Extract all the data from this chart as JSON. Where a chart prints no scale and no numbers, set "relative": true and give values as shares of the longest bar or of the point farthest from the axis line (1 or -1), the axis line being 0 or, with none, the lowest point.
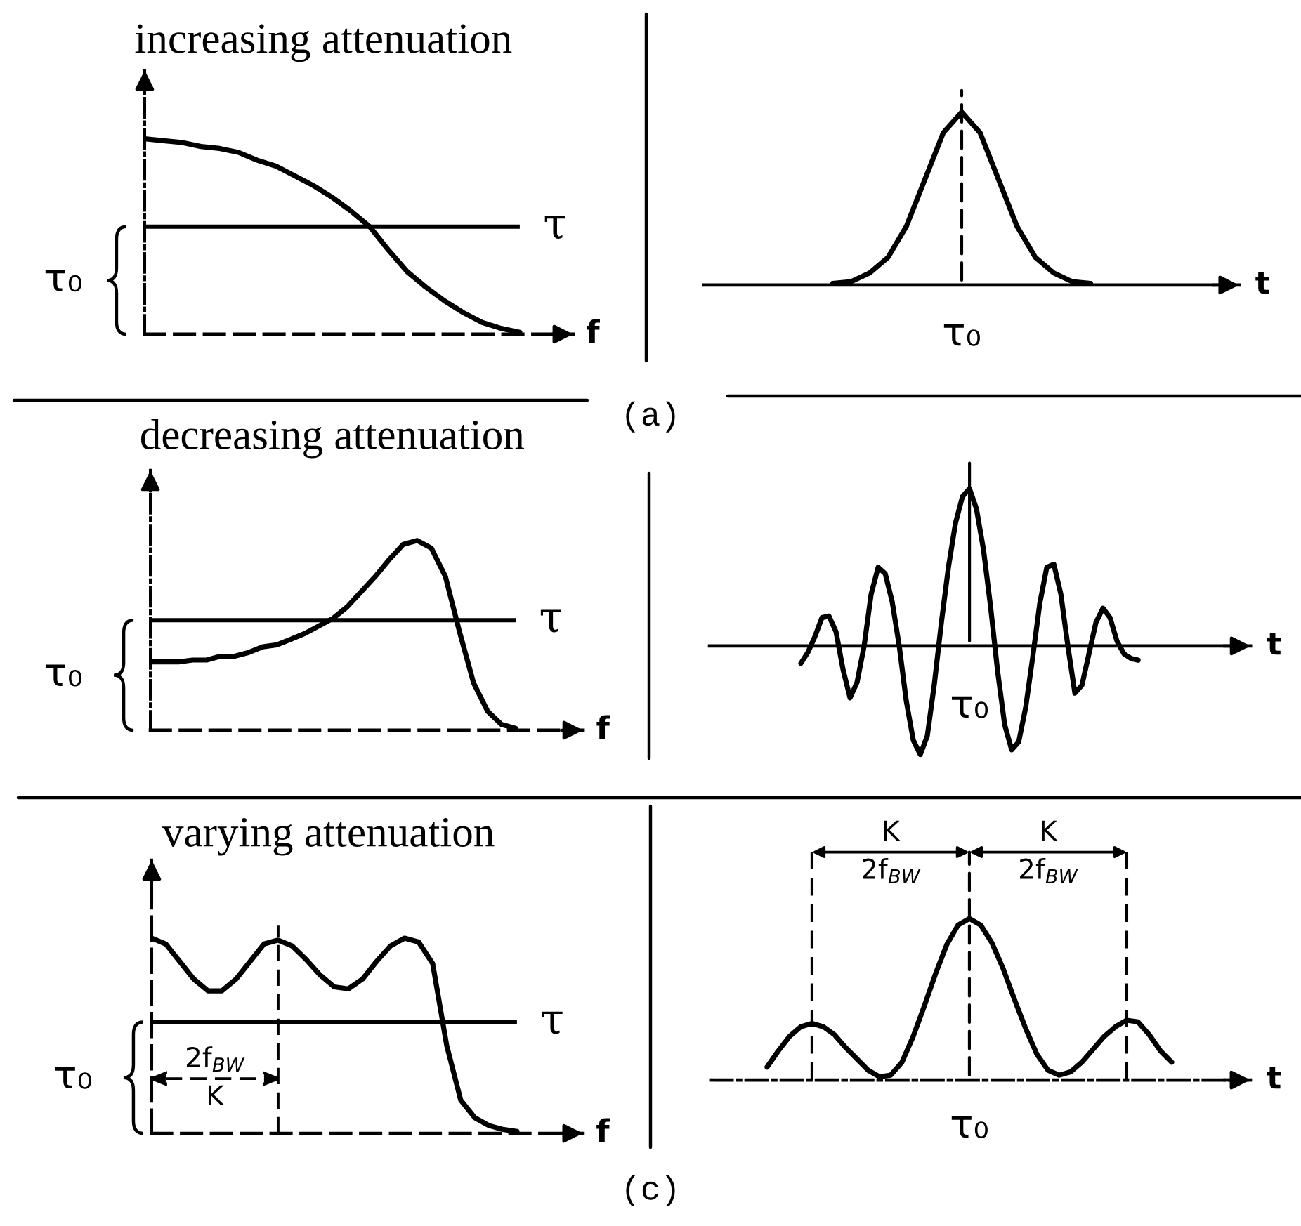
{
  "chart_data": [
    {
      "type": "line",
      "title": "increasing attenuation",
      "xlabel": "f",
      "relative": true,
      "color": "#000000",
      "categories": [
        null,
        null,
        null,
        null,
        null,
        null,
        null,
        null,
        null,
        null,
        null,
        null,
        null,
        null,
        null,
        null,
        null,
        null,
        null,
        null,
        null
      ],
      "values": [
        1,
        0.99,
        0.98,
        0.96,
        0.95,
        0.93,
        0.89,
        0.86,
        0.81,
        0.76,
        0.7,
        0.63,
        0.55,
        0.43,
        0.32,
        0.24,
        0.17,
        0.11,
        0.06,
        0.03,
        0.01
      ],
      "ref_lines": [
        {
          "axis": "y",
          "value": 0.55,
          "label": "τ",
          "color": "#000000",
          "line_style": "solid"
        }
      ],
      "annotations": [
        "τ₀",
        "(a)"
      ]
    },
    {
      "type": "line",
      "xlabel": "t",
      "relative": true,
      "color": "#000000",
      "categories": [
        null,
        null,
        null,
        null,
        null,
        null,
        null,
        null,
        null,
        null,
        null,
        null,
        null,
        null,
        null
      ],
      "values": [
        0.01,
        0.02,
        0.07,
        0.16,
        0.34,
        0.61,
        0.88,
        1,
        0.88,
        0.61,
        0.34,
        0.16,
        0.07,
        0.02,
        0.01
      ],
      "annotations": [
        "τ₀"
      ]
    },
    {
      "type": "line",
      "title": "decreasing attenuation",
      "xlabel": "f",
      "relative": true,
      "color": "#000000",
      "categories": [
        null,
        null,
        null,
        null,
        null,
        null,
        null,
        null,
        null,
        null,
        null,
        null,
        null,
        null,
        null,
        null,
        null,
        null,
        null,
        null,
        null,
        null,
        null,
        null,
        null,
        null,
        null
      ],
      "values": [
        0.36,
        0.36,
        0.36,
        0.37,
        0.37,
        0.39,
        0.39,
        0.41,
        0.44,
        0.45,
        0.48,
        0.51,
        0.55,
        0.59,
        0.65,
        0.73,
        0.81,
        0.9,
        0.98,
        1,
        0.96,
        0.81,
        0.52,
        0.25,
        0.1,
        0.03,
        0.01
      ],
      "ref_lines": [
        {
          "axis": "y",
          "value": 0.58,
          "label": "τ",
          "color": "#000000",
          "line_style": "solid"
        }
      ],
      "annotations": [
        "τ₀"
      ]
    },
    {
      "type": "line",
      "xlabel": "t",
      "relative": true,
      "color": "#000000",
      "categories": [
        null,
        null,
        null,
        null,
        null,
        null,
        null,
        null,
        null,
        null,
        null,
        null,
        null,
        null,
        null,
        null,
        null,
        null,
        null,
        null,
        null,
        null,
        null,
        null,
        null,
        null,
        null,
        null,
        null,
        null,
        null,
        null,
        null,
        null,
        null,
        null,
        null,
        null,
        null,
        null,
        null,
        null,
        null,
        null,
        null,
        null,
        null,
        null,
        null
      ],
      "values": [
        -0.11,
        -0.04,
        0.06,
        0.18,
        0.19,
        0.09,
        -0.15,
        -0.33,
        -0.23,
        0,
        0.33,
        0.5,
        0.46,
        0.28,
        0,
        -0.35,
        -0.6,
        -0.69,
        -0.57,
        -0.24,
        0.15,
        0.5,
        0.78,
        0.95,
        1,
        0.87,
        0.61,
        0.25,
        -0.16,
        -0.5,
        -0.66,
        -0.61,
        -0.39,
        -0.07,
        0.27,
        0.5,
        0.52,
        0.33,
        0,
        -0.3,
        -0.25,
        -0.05,
        0.15,
        0.24,
        0.18,
        0.03,
        -0.05,
        -0.08,
        -0.09
      ],
      "annotations": [
        "τ₀"
      ]
    },
    {
      "type": "line",
      "title": "varying attenuation",
      "xlabel": "f",
      "relative": true,
      "color": "#000000",
      "categories": [
        null,
        null,
        null,
        null,
        null,
        null,
        null,
        null,
        null,
        null,
        null,
        null,
        null,
        null,
        null,
        null,
        null,
        null,
        null,
        null,
        null,
        null,
        null,
        null,
        null,
        null,
        null
      ],
      "values": [
        1,
        0.97,
        0.88,
        0.79,
        0.73,
        0.73,
        0.79,
        0.88,
        0.97,
        0.99,
        0.96,
        0.89,
        0.81,
        0.75,
        0.74,
        0.79,
        0.88,
        0.96,
        1,
        0.98,
        0.87,
        0.45,
        0.17,
        0.08,
        0.04,
        0.02,
        0.01
      ],
      "ref_lines": [
        {
          "axis": "y",
          "value": 0.57,
          "label": "τ",
          "color": "#000000",
          "line_style": "solid"
        }
      ],
      "annotations": [
        "τ₀",
        "2f$_{BW}$",
        "K",
        "(c)"
      ]
    },
    {
      "type": "line",
      "xlabel": "t",
      "relative": true,
      "color": "#000000",
      "categories": [
        null,
        null,
        null,
        null,
        null,
        null,
        null,
        null,
        null,
        null,
        null,
        null,
        null,
        null,
        null,
        null,
        null,
        null,
        null,
        null,
        null,
        null,
        null,
        null,
        null,
        null,
        null,
        null,
        null,
        null,
        null,
        null,
        null,
        null,
        null,
        null,
        null
      ],
      "values": [
        0.08,
        0.18,
        0.27,
        0.33,
        0.35,
        0.33,
        0.28,
        0.2,
        0.13,
        0.06,
        0.02,
        0.03,
        0.11,
        0.27,
        0.46,
        0.66,
        0.84,
        0.96,
        1,
        0.96,
        0.85,
        0.69,
        0.5,
        0.32,
        0.16,
        0.06,
        0.03,
        0.05,
        0.11,
        0.19,
        0.27,
        0.33,
        0.37,
        0.36,
        0.28,
        0.18,
        0.11
      ],
      "annotations": [
        "K",
        "2f$_{BW}$",
        "K",
        "2f$_{BW}$",
        "τ₀"
      ]
    }
  ]
}
